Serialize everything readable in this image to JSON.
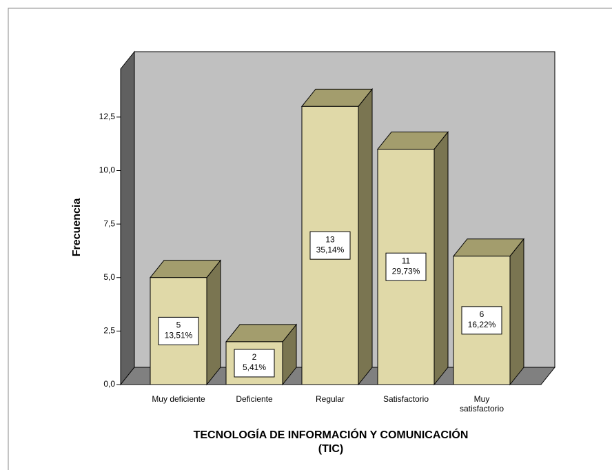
{
  "chart_data": {
    "type": "bar3d",
    "ylabel": "Frecuencia",
    "xlabel": [
      "TECNOLOGÍA DE INFORMACIÓN Y COMUNICACIÓN",
      "(TIC)"
    ],
    "categories": [
      "Muy deficiente",
      "Deficiente",
      "Regular",
      "Satisfactorio",
      "Muy satisfactorio"
    ],
    "values": [
      5,
      2,
      13,
      11,
      6
    ],
    "percent_labels": [
      "13,51%",
      "5,41%",
      "35,14%",
      "29,73%",
      "16,22%"
    ],
    "color": "#e0d9a8",
    "ylim": [
      0,
      14.75
    ],
    "yticks": [
      {
        "value": 0,
        "label": "0,0"
      },
      {
        "value": 2.5,
        "label": "2,5"
      },
      {
        "value": 5,
        "label": "5,0"
      },
      {
        "value": 7.5,
        "label": "7,5"
      },
      {
        "value": 10,
        "label": "10,0"
      },
      {
        "value": 12.5,
        "label": "12,5"
      }
    ]
  }
}
